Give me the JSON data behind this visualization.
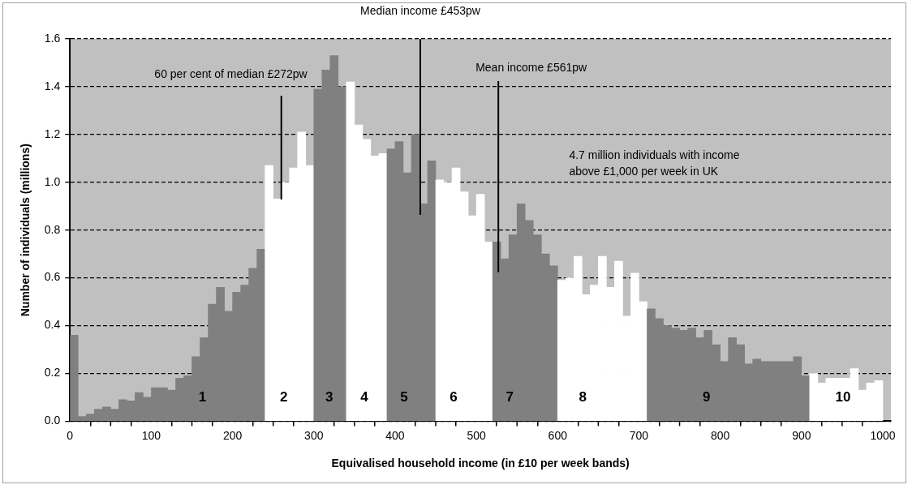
{
  "chart_data": {
    "type": "histogram",
    "xlabel": "Equivalised household income (in £10 per week bands)",
    "ylabel": "Number of individuals (millions)",
    "bins": [
      0,
      10,
      20,
      30,
      40,
      50,
      60,
      70,
      80,
      90,
      100,
      110,
      120,
      130,
      140,
      150,
      160,
      170,
      180,
      190,
      200,
      210,
      220,
      230,
      240,
      250,
      260,
      270,
      280,
      290,
      300,
      310,
      320,
      330,
      340,
      350,
      360,
      370,
      380,
      390,
      400,
      410,
      420,
      430,
      440,
      450,
      460,
      470,
      480,
      490,
      500,
      510,
      520,
      530,
      540,
      550,
      560,
      570,
      580,
      590,
      600,
      610,
      620,
      630,
      640,
      650,
      660,
      670,
      680,
      690,
      700,
      710,
      720,
      730,
      740,
      750,
      760,
      770,
      780,
      790,
      800,
      810,
      820,
      830,
      840,
      850,
      860,
      870,
      880,
      890,
      900,
      910,
      920,
      930,
      940,
      950,
      960,
      970,
      980,
      990,
      1000
    ],
    "values": [
      0.36,
      0.02,
      0.03,
      0.05,
      0.06,
      0.05,
      0.09,
      0.085,
      0.12,
      0.1,
      0.14,
      0.14,
      0.13,
      0.18,
      0.19,
      0.27,
      0.35,
      0.49,
      0.56,
      0.46,
      0.54,
      0.57,
      0.64,
      0.72,
      1.07,
      0.93,
      1.0,
      1.06,
      1.21,
      1.07,
      1.39,
      1.47,
      1.53,
      1.4,
      1.42,
      1.24,
      1.18,
      1.11,
      1.12,
      1.14,
      1.17,
      1.04,
      1.2,
      0.91,
      1.09,
      1.01,
      1.0,
      1.06,
      0.96,
      0.86,
      0.95,
      0.75,
      0.75,
      0.68,
      0.78,
      0.91,
      0.84,
      0.78,
      0.7,
      0.65,
      0.59,
      0.6,
      0.69,
      0.53,
      0.57,
      0.69,
      0.56,
      0.67,
      0.44,
      0.62,
      0.5,
      0.47,
      0.43,
      0.4,
      0.39,
      0.38,
      0.39,
      0.35,
      0.38,
      0.32,
      0.25,
      0.35,
      0.32,
      0.24,
      0.26,
      0.25,
      0.25,
      0.25,
      0.25,
      0.27,
      0.19,
      0.2,
      0.16,
      0.18,
      0.18,
      0.18,
      0.22,
      0.13,
      0.16,
      0.17
    ],
    "colors": [
      "#808080",
      "#808080",
      "#808080",
      "#808080",
      "#808080",
      "#808080",
      "#808080",
      "#808080",
      "#808080",
      "#808080",
      "#808080",
      "#808080",
      "#808080",
      "#808080",
      "#808080",
      "#808080",
      "#808080",
      "#808080",
      "#808080",
      "#808080",
      "#808080",
      "#808080",
      "#808080",
      "#808080",
      "#ffffff",
      "#ffffff",
      "#ffffff",
      "#ffffff",
      "#ffffff",
      "#ffffff",
      "#808080",
      "#808080",
      "#808080",
      "#808080",
      "#ffffff",
      "#ffffff",
      "#ffffff",
      "#ffffff",
      "#ffffff",
      "#808080",
      "#808080",
      "#808080",
      "#808080",
      "#808080",
      "#808080",
      "#ffffff",
      "#ffffff",
      "#ffffff",
      "#ffffff",
      "#ffffff",
      "#ffffff",
      "#ffffff",
      "#808080",
      "#808080",
      "#808080",
      "#808080",
      "#808080",
      "#808080",
      "#808080",
      "#808080",
      "#ffffff",
      "#ffffff",
      "#ffffff",
      "#ffffff",
      "#ffffff",
      "#ffffff",
      "#ffffff",
      "#ffffff",
      "#ffffff",
      "#ffffff",
      "#ffffff",
      "#808080",
      "#808080",
      "#808080",
      "#808080",
      "#808080",
      "#808080",
      "#808080",
      "#808080",
      "#808080",
      "#808080",
      "#808080",
      "#808080",
      "#808080",
      "#808080",
      "#808080",
      "#808080",
      "#808080",
      "#808080",
      "#808080",
      "#808080",
      "#ffffff",
      "#ffffff",
      "#ffffff",
      "#ffffff",
      "#ffffff",
      "#ffffff",
      "#ffffff",
      "#ffffff",
      "#ffffff"
    ],
    "xlim": [
      0,
      1010
    ],
    "xticks": [
      0,
      {
        "value": 50,
        "label": null
      },
      100,
      {
        "value": 150,
        "label": null
      },
      200,
      {
        "value": 250,
        "label": null
      },
      300,
      {
        "value": 350,
        "label": null
      },
      400,
      {
        "value": 450,
        "label": null
      },
      500,
      {
        "value": 550,
        "label": null
      },
      600,
      {
        "value": 650,
        "label": null
      },
      700,
      {
        "value": 750,
        "label": null
      },
      800,
      {
        "value": 850,
        "label": null
      },
      900,
      {
        "value": 950,
        "label": null
      },
      1000
    ],
    "ylim": [
      0,
      1.6
    ],
    "yticks": [
      {
        "value": 0,
        "label": "0.0"
      },
      0.2,
      0.4,
      0.6,
      0.8,
      {
        "value": 1,
        "label": "1.0"
      },
      1.2,
      1.4,
      1.6
    ],
    "grid": "y",
    "legend": false,
    "ref_lines": [
      {
        "axis": "x",
        "value": 260,
        "label": "60 per cent of median £272pw"
      },
      {
        "axis": "x",
        "value": 431,
        "label": "Median income £453pw"
      },
      {
        "axis": "x",
        "value": 527,
        "label": "Mean income £561pw"
      }
    ],
    "annotations": [
      "4.7 million individuals with income above £1,000 per week in UK",
      {
        "text": "1",
        "x": 163,
        "y": 0.1
      },
      {
        "text": "2",
        "x": 263,
        "y": 0.1
      },
      {
        "text": "3",
        "x": 319,
        "y": 0.1
      },
      {
        "text": "4",
        "x": 362,
        "y": 0.1
      },
      {
        "text": "5",
        "x": 411,
        "y": 0.1
      },
      {
        "text": "6",
        "x": 472,
        "y": 0.1
      },
      {
        "text": "7",
        "x": 541,
        "y": 0.1
      },
      {
        "text": "8",
        "x": 631,
        "y": 0.1
      },
      {
        "text": "9",
        "x": 783,
        "y": 0.1
      },
      {
        "text": "10",
        "x": 951,
        "y": 0.1
      }
    ]
  }
}
